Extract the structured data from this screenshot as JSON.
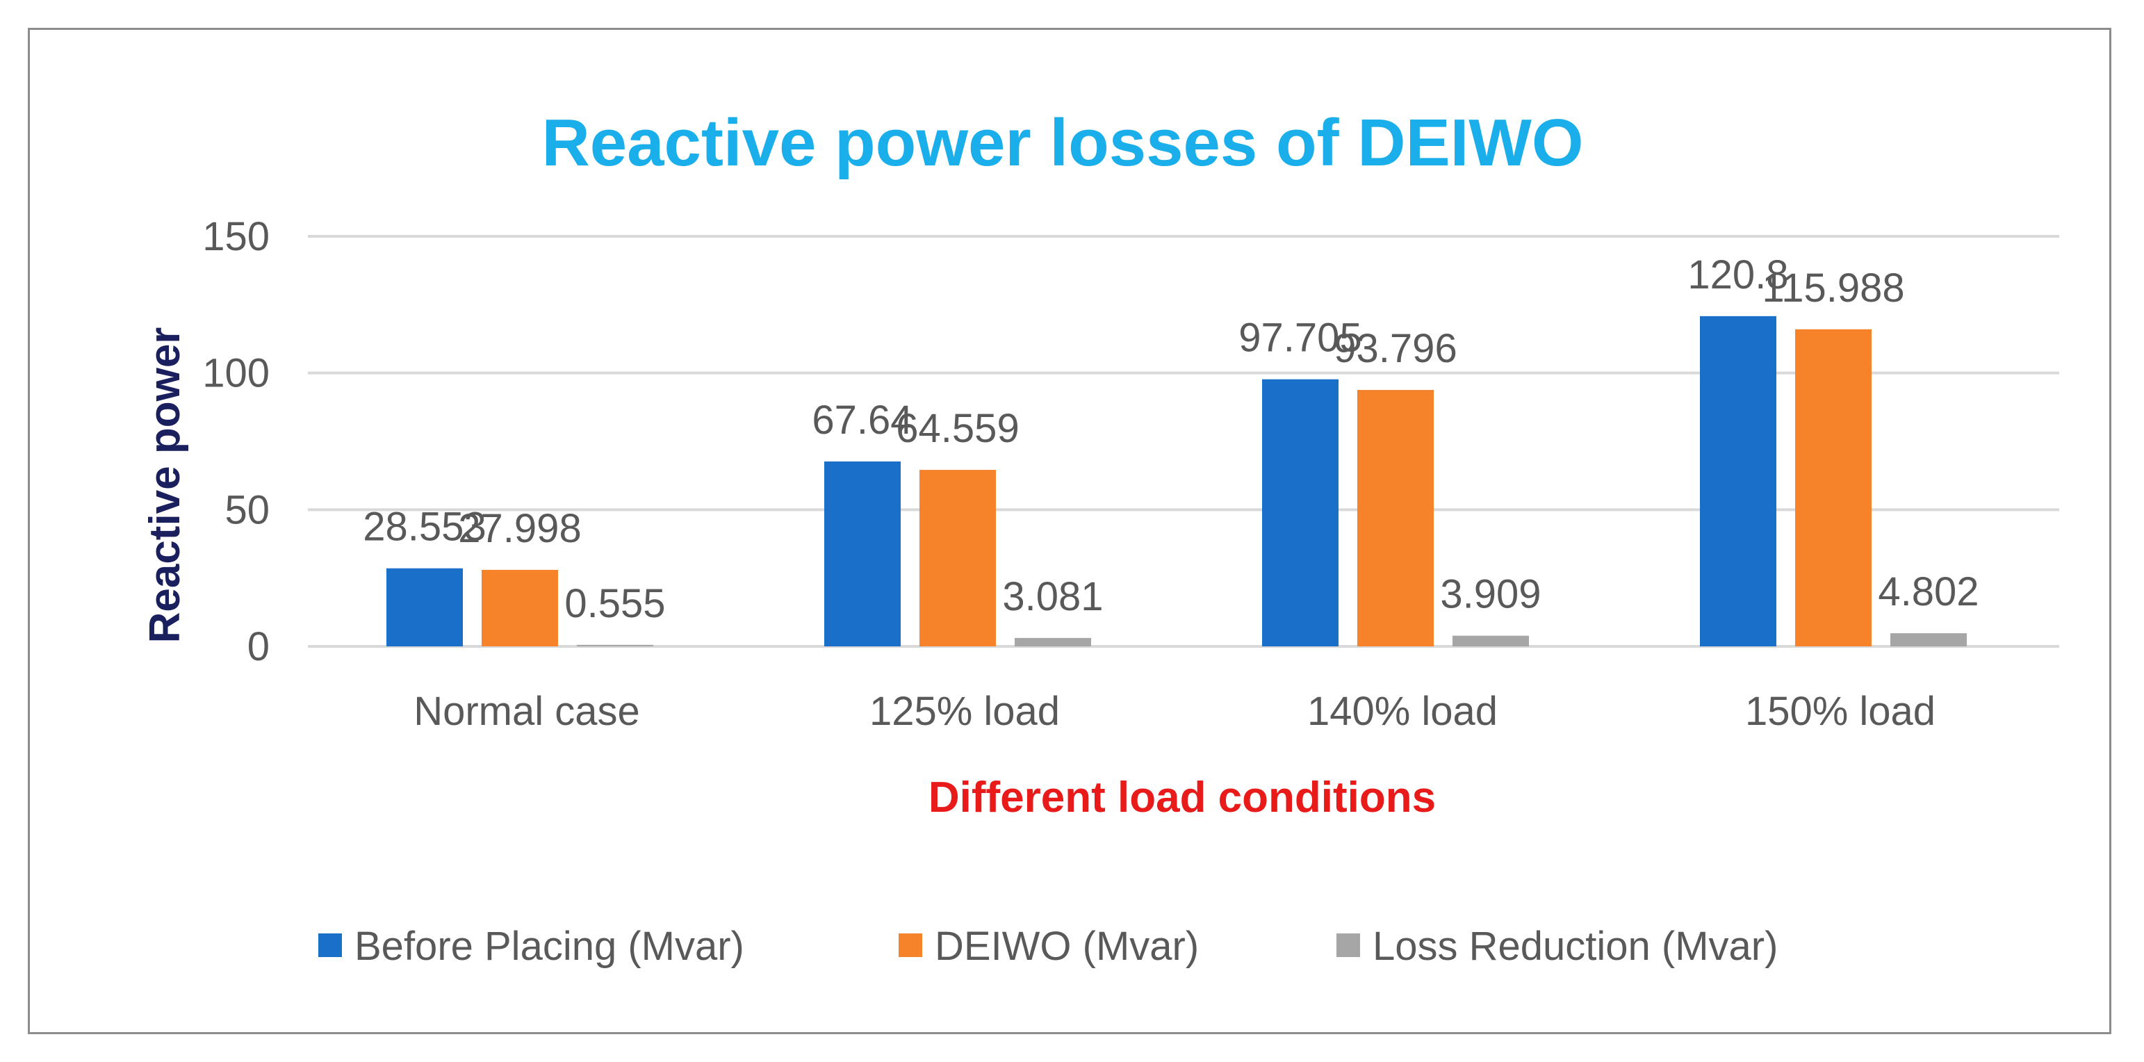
{
  "chart_data": {
    "type": "bar",
    "title": "Reactive power losses of DEIWO",
    "xlabel": "Different load conditions",
    "ylabel": "Reactive power",
    "categories": [
      "Normal case",
      "125% load",
      "140% load",
      "150% load"
    ],
    "series": [
      {
        "name": "Before Placing (Mvar)",
        "values": [
          28.553,
          67.64,
          97.705,
          120.8
        ],
        "labels": [
          "28.553",
          "67.64",
          "97.705",
          "120.8"
        ]
      },
      {
        "name": "DEIWO (Mvar)",
        "values": [
          27.998,
          64.559,
          93.796,
          115.988
        ],
        "labels": [
          "27.998",
          "64.559",
          "93.796",
          "115.988"
        ]
      },
      {
        "name": "Loss Reduction (Mvar)",
        "values": [
          0.555,
          3.081,
          3.909,
          4.802
        ],
        "labels": [
          "0.555",
          "3.081",
          "3.909",
          "4.802"
        ]
      }
    ],
    "ylim": [
      0,
      150
    ],
    "yticks": [
      0,
      50,
      100,
      150
    ],
    "ytick_labels": [
      "0",
      "50",
      "100",
      "150"
    ],
    "grid": true,
    "legend_position": "bottom",
    "colors": {
      "series": [
        "#1a70c8",
        "#f6822a",
        "#a6a6a6"
      ],
      "title": "#1aaeea",
      "xlabel": "#e81a1a",
      "ylabel": "#1a1f5e",
      "text": "#595959",
      "grid": "#d9d9d9"
    }
  }
}
